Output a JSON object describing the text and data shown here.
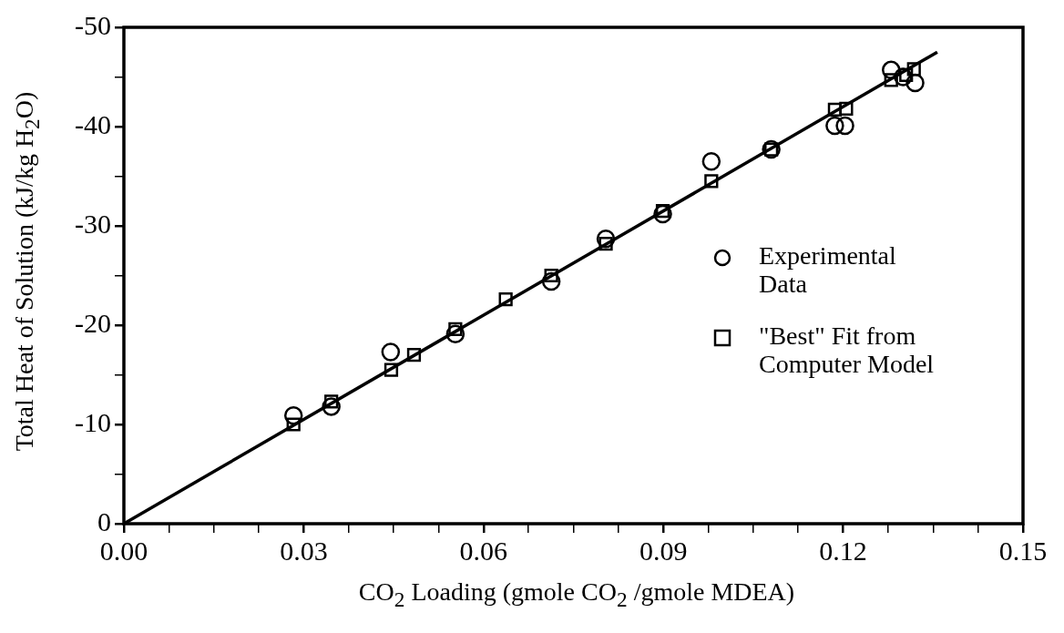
{
  "chart_data": {
    "type": "scatter",
    "xlabel": "CO$_{2}$ Loading (gmole CO$_{2}$ /gmole MDEA)",
    "ylabel": "Total Heat of Solution (kJ/kg H$_{2}$O)",
    "xlim": [
      0,
      0.15
    ],
    "xticks": [
      {
        "value": 0,
        "label": "0.00"
      },
      {
        "value": 0.0075,
        "label": null
      },
      {
        "value": 0.015,
        "label": null
      },
      {
        "value": 0.0225,
        "label": null
      },
      {
        "value": 0.03,
        "label": "0.03"
      },
      {
        "value": 0.0375,
        "label": null
      },
      {
        "value": 0.045,
        "label": null
      },
      {
        "value": 0.0525,
        "label": null
      },
      {
        "value": 0.06,
        "label": "0.06"
      },
      {
        "value": 0.0675,
        "label": null
      },
      {
        "value": 0.075,
        "label": null
      },
      {
        "value": 0.0825,
        "label": null
      },
      {
        "value": 0.09,
        "label": "0.09"
      },
      {
        "value": 0.0975,
        "label": null
      },
      {
        "value": 0.105,
        "label": null
      },
      {
        "value": 0.1125,
        "label": null
      },
      {
        "value": 0.12,
        "label": "0.12"
      },
      {
        "value": 0.1275,
        "label": null
      },
      {
        "value": 0.135,
        "label": null
      },
      {
        "value": 0.1425,
        "label": null
      },
      {
        "value": 0.15,
        "label": "0.15"
      }
    ],
    "ylim": [
      0,
      -50
    ],
    "yticks": [
      0,
      {
        "value": -5,
        "label": null
      },
      -10,
      {
        "value": -15,
        "label": null
      },
      -20,
      {
        "value": -25,
        "label": null
      },
      -30,
      {
        "value": -35,
        "label": null
      },
      -40,
      {
        "value": -45,
        "label": null
      },
      -50
    ],
    "legend": "right",
    "series": [
      {
        "name": "Experimental Data",
        "marker": "circle",
        "color": "#000000",
        "x": [
          0.0283,
          0.0346,
          0.0445,
          0.0553,
          0.0713,
          0.0804,
          0.0899,
          0.098,
          0.108,
          0.1186,
          0.1203,
          0.128,
          0.13,
          0.132
        ],
        "values": [
          -10.9,
          -11.8,
          -17.3,
          -19.1,
          -24.4,
          -28.7,
          -31.2,
          -36.5,
          -37.7,
          -40.1,
          -40.1,
          -45.7,
          -45.0,
          -44.4
        ]
      },
      {
        "name": "\"Best\" Fit from Computer Model",
        "marker": "square",
        "color": "#000000",
        "x": [
          0.0283,
          0.0346,
          0.0446,
          0.0484,
          0.0553,
          0.0637,
          0.0713,
          0.0804,
          0.0899,
          0.098,
          0.108,
          0.1186,
          0.1205,
          0.128,
          0.1305,
          0.1318
        ],
        "values": [
          -10.0,
          -12.3,
          -15.5,
          -17.0,
          -19.6,
          -22.6,
          -25.0,
          -28.2,
          -31.5,
          -34.5,
          -37.7,
          -41.7,
          -41.8,
          -44.7,
          -45.2,
          -45.8
        ]
      },
      {
        "type": "line",
        "marker": "none",
        "line_style": "solid",
        "color": "#000000",
        "x": [
          0,
          0.1357
        ],
        "values": [
          0,
          -47.5
        ]
      }
    ]
  }
}
